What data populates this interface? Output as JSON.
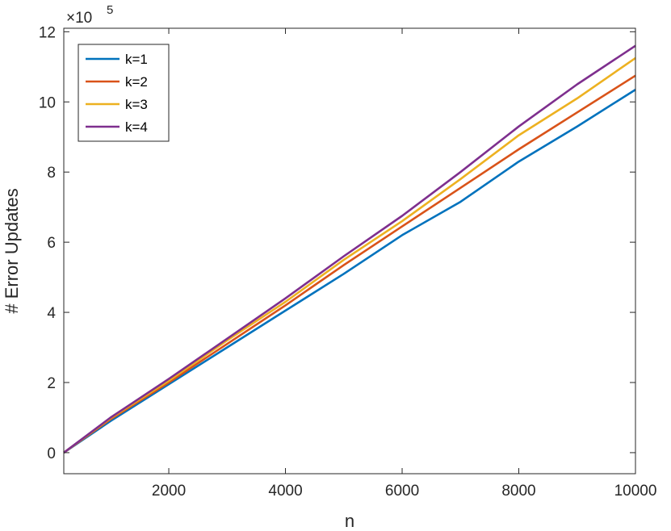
{
  "chart_data": {
    "type": "line",
    "xlabel": "n",
    "ylabel": "# Error Updates",
    "xlim": [
      200,
      10000
    ],
    "ylim": [
      -60000,
      1210000
    ],
    "x_ticks": [
      2000,
      4000,
      6000,
      8000,
      10000
    ],
    "x_tick_labels": [
      "2000",
      "4000",
      "6000",
      "8000",
      "10000"
    ],
    "y_ticks": [
      0,
      200000,
      400000,
      600000,
      800000,
      1000000,
      1200000
    ],
    "y_tick_labels": [
      "0",
      "2",
      "4",
      "6",
      "8",
      "10",
      "12"
    ],
    "y_exponent_label": {
      "base": "×10",
      "exponent": "5"
    },
    "legend_position": "top-left",
    "grid": false,
    "x": [
      200,
      1000,
      2000,
      3000,
      4000,
      5000,
      6000,
      7000,
      8000,
      9000,
      10000
    ],
    "series": [
      {
        "name": "k=1",
        "color": "#0072BD",
        "values": [
          0,
          90000,
          195000,
          300000,
          405000,
          510000,
          620000,
          715000,
          830000,
          930000,
          1035000
        ]
      },
      {
        "name": "k=2",
        "color": "#D95319",
        "values": [
          0,
          95000,
          200000,
          310000,
          420000,
          535000,
          645000,
          755000,
          865000,
          970000,
          1075000
        ]
      },
      {
        "name": "k=3",
        "color": "#EDB120",
        "values": [
          0,
          98000,
          205000,
          320000,
          430000,
          550000,
          660000,
          780000,
          905000,
          1010000,
          1125000
        ]
      },
      {
        "name": "k=4",
        "color": "#7E2F8E",
        "values": [
          0,
          100000,
          210000,
          325000,
          440000,
          560000,
          675000,
          800000,
          930000,
          1050000,
          1160000
        ]
      }
    ]
  }
}
